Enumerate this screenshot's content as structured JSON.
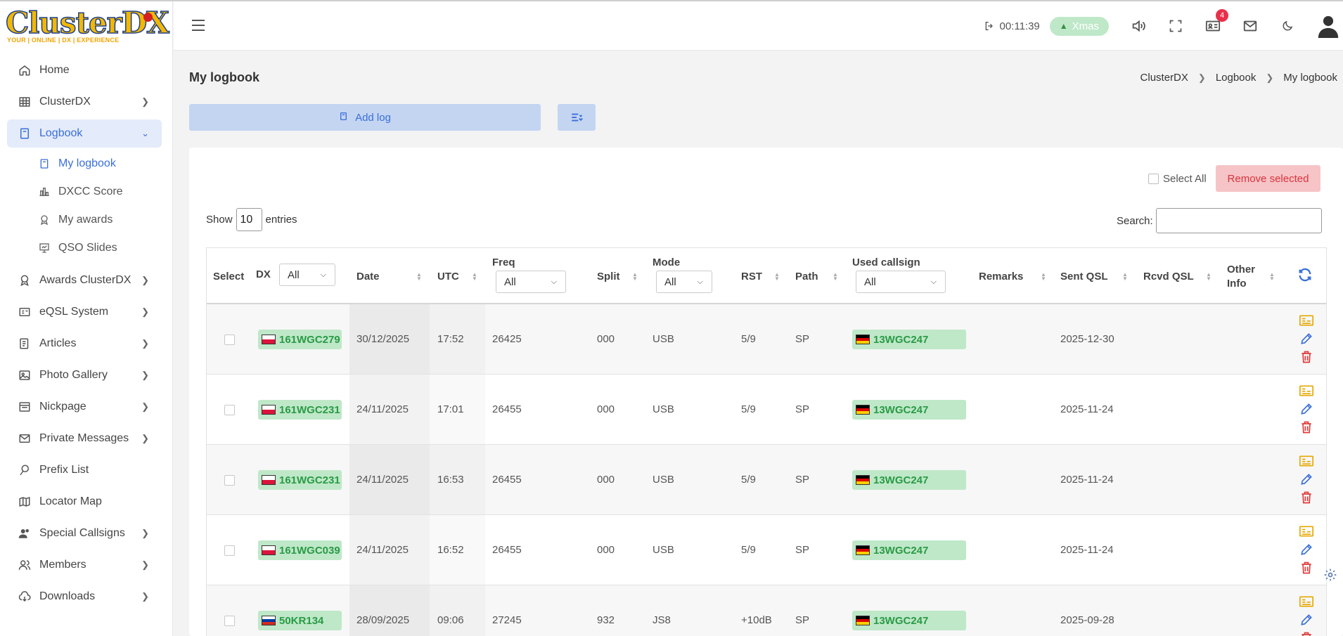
{
  "brand": {
    "logo_text": "ClusterDX",
    "tagline": "YOUR | ONLINE | DX | EXPERIENCE"
  },
  "sidebar": {
    "items": [
      {
        "label": "Home",
        "icon": "home-icon",
        "chevron": false
      },
      {
        "label": "ClusterDX",
        "icon": "table-icon",
        "chevron": true
      },
      {
        "label": "Logbook",
        "icon": "book-icon",
        "chevron": true,
        "expanded": true
      },
      {
        "label": "Awards ClusterDX",
        "icon": "award-icon",
        "chevron": true
      },
      {
        "label": "eQSL System",
        "icon": "id-card-icon",
        "chevron": true
      },
      {
        "label": "Articles",
        "icon": "article-icon",
        "chevron": true
      },
      {
        "label": "Photo Gallery",
        "icon": "image-icon",
        "chevron": true
      },
      {
        "label": "Nickpage",
        "icon": "page-icon",
        "chevron": true
      },
      {
        "label": "Private Messages",
        "icon": "mail-icon",
        "chevron": true
      },
      {
        "label": "Prefix List",
        "icon": "pin-icon",
        "chevron": false
      },
      {
        "label": "Locator Map",
        "icon": "map-icon",
        "chevron": false
      },
      {
        "label": "Special Callsigns",
        "icon": "users-icon",
        "chevron": true
      },
      {
        "label": "Members",
        "icon": "members-icon",
        "chevron": true
      },
      {
        "label": "Downloads",
        "icon": "cloud-download-icon",
        "chevron": true
      }
    ],
    "logbook_sub": [
      {
        "label": "My logbook",
        "icon": "book-icon",
        "active": true
      },
      {
        "label": "DXCC Score",
        "icon": "bar-chart-icon"
      },
      {
        "label": "My awards",
        "icon": "medal-icon"
      },
      {
        "label": "QSO Slides",
        "icon": "slides-icon"
      }
    ]
  },
  "header": {
    "timer": "00:11:39",
    "theme_badge": "Xmas",
    "notification_count": "4"
  },
  "page": {
    "title": "My logbook",
    "breadcrumb": [
      "ClusterDX",
      "Logbook",
      "My logbook"
    ],
    "add_log_label": "Add log",
    "select_all_label": "Select All",
    "remove_selected_label": "Remove selected",
    "show_label": "Show",
    "entries_count": "10",
    "entries_label": "entries",
    "search_label": "Search:"
  },
  "table": {
    "headers": {
      "select": "Select",
      "dx": "DX",
      "date": "Date",
      "utc": "UTC",
      "freq": "Freq",
      "split": "Split",
      "mode": "Mode",
      "rst": "RST",
      "path": "Path",
      "used_callsign": "Used callsign",
      "remarks": "Remarks",
      "sent_qsl": "Sent QSL",
      "rcvd_qsl": "Rcvd QSL",
      "other_info_1": "Other",
      "other_info_2": "Info"
    },
    "filters": {
      "dx": "All",
      "freq": "All",
      "mode": "All",
      "used_callsign": "All"
    },
    "rows": [
      {
        "dx": "161WGC279",
        "dx_flag": "poland",
        "date": "30/12/2025",
        "utc": "17:52",
        "freq": "26425",
        "split": "000",
        "mode": "USB",
        "rst": "5/9",
        "path": "SP",
        "used_callsign": "13WGC247",
        "used_flag": "germany",
        "remarks": "",
        "sent_qsl": "2025-12-30",
        "rcvd_qsl": ""
      },
      {
        "dx": "161WGC231",
        "dx_flag": "poland",
        "date": "24/11/2025",
        "utc": "17:01",
        "freq": "26455",
        "split": "000",
        "mode": "USB",
        "rst": "5/9",
        "path": "SP",
        "used_callsign": "13WGC247",
        "used_flag": "germany",
        "remarks": "",
        "sent_qsl": "2025-11-24",
        "rcvd_qsl": ""
      },
      {
        "dx": "161WGC231",
        "dx_flag": "poland",
        "date": "24/11/2025",
        "utc": "16:53",
        "freq": "26455",
        "split": "000",
        "mode": "USB",
        "rst": "5/9",
        "path": "SP",
        "used_callsign": "13WGC247",
        "used_flag": "germany",
        "remarks": "",
        "sent_qsl": "2025-11-24",
        "rcvd_qsl": ""
      },
      {
        "dx": "161WGC039",
        "dx_flag": "poland",
        "date": "24/11/2025",
        "utc": "16:52",
        "freq": "26455",
        "split": "000",
        "mode": "USB",
        "rst": "5/9",
        "path": "SP",
        "used_callsign": "13WGC247",
        "used_flag": "germany",
        "remarks": "",
        "sent_qsl": "2025-11-24",
        "rcvd_qsl": ""
      },
      {
        "dx": "50KR134",
        "dx_flag": "russia",
        "date": "28/09/2025",
        "utc": "09:06",
        "freq": "27245",
        "split": "932",
        "mode": "JS8",
        "rst": "+10dB",
        "path": "SP",
        "used_callsign": "13WGC247",
        "used_flag": "germany",
        "remarks": "",
        "sent_qsl": "2025-09-28",
        "rcvd_qsl": ""
      }
    ]
  },
  "colors": {
    "accent": "#3a6fd8",
    "pill_green": "#bfe8c9",
    "danger": "#d9343e",
    "qsl_yellow": "#e6a700"
  }
}
